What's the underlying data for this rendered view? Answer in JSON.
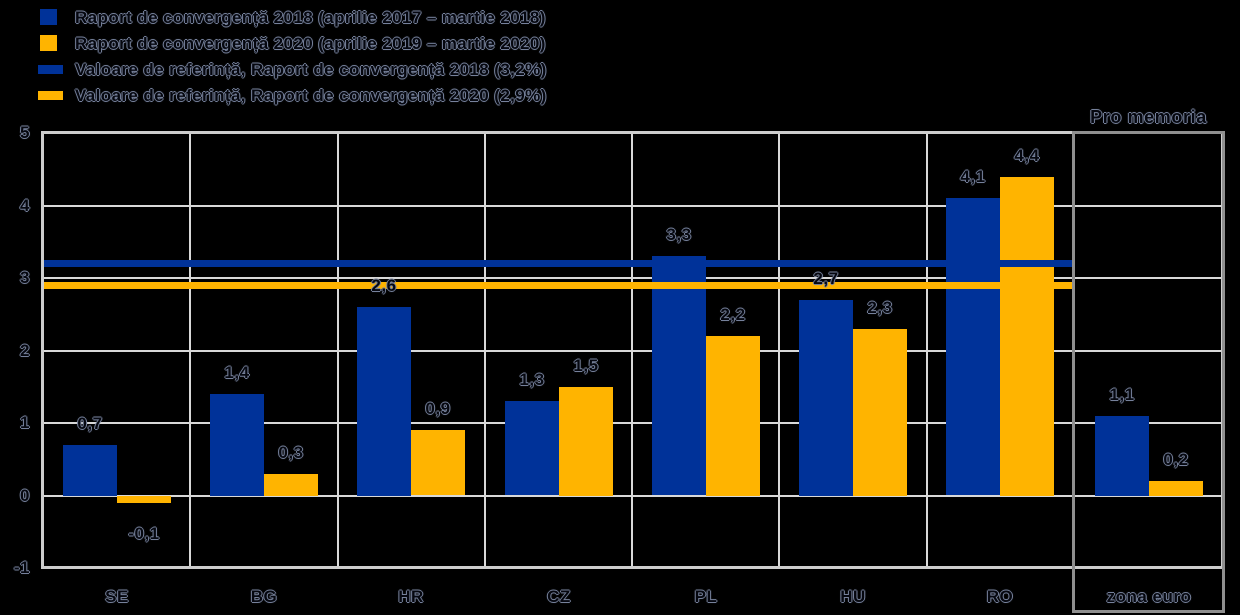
{
  "colors": {
    "background": "#000000",
    "bar_2018": "#003299",
    "bar_2020": "#FFB400",
    "gridline": "#D9D9D9",
    "frame": "#CDCDCD",
    "pro_memoria_border": "#8F8F8F",
    "text_fill": "#05070F",
    "text_halo": "#76819B"
  },
  "legend": {
    "items": [
      {
        "marker": "square",
        "color": "#003299",
        "label": "Raport de convergență 2018 (aprilie 2017 – martie 2018)"
      },
      {
        "marker": "square",
        "color": "#FFB400",
        "label": "Raport de convergență 2020 (aprilie 2019 – martie 2020)"
      },
      {
        "marker": "line",
        "color": "#003299",
        "label": "Valoare de referință, Raport de convergență 2018 (3,2%)"
      },
      {
        "marker": "line",
        "color": "#FFB400",
        "label": "Valoare de referință, Raport de convergență 2020 (2,9%)"
      }
    ]
  },
  "chart_data": {
    "type": "bar",
    "title": "",
    "categories": [
      "SE",
      "BG",
      "HR",
      "CZ",
      "PL",
      "HU",
      "RO"
    ],
    "series": [
      {
        "name": "Raport de convergență 2018 (aprilie 2017 – martie 2018)",
        "color": "#003299",
        "values": [
          0.7,
          1.4,
          2.6,
          1.3,
          3.3,
          2.7,
          4.1
        ]
      },
      {
        "name": "Raport de convergență 2020 (aprilie 2019 – martie 2020)",
        "color": "#FFB400",
        "values": [
          -0.1,
          0.3,
          0.9,
          1.5,
          2.2,
          2.3,
          4.4
        ]
      }
    ],
    "reference_lines": [
      {
        "name": "Valoare de referință, Raport de convergență 2018 (3,2%)",
        "value": 3.2,
        "color": "#003299"
      },
      {
        "name": "Valoare de referință, Raport de convergență 2020 (2,9%)",
        "value": 2.9,
        "color": "#FFB400"
      }
    ],
    "pro_memoria": {
      "label": "Pro memoria",
      "category": "zona euro",
      "values": [
        1.1,
        0.2
      ]
    },
    "ylim": [
      -1,
      5
    ],
    "yticks": [
      -1,
      0,
      1,
      2,
      3,
      4,
      5
    ],
    "grid": true,
    "legend_position": "top-left",
    "decimal_separator": ","
  }
}
